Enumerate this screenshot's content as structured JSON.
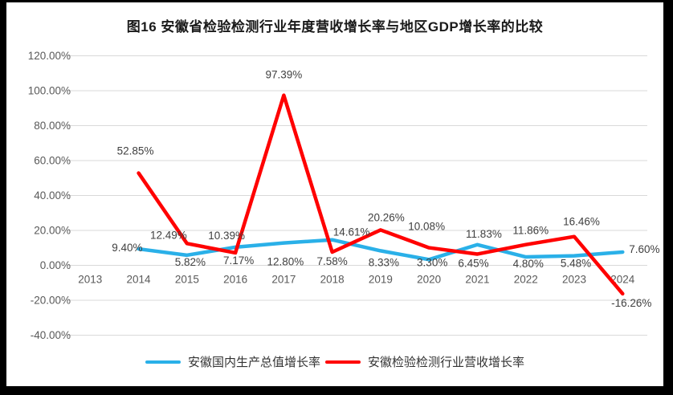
{
  "figure": {
    "frame_color": "#000000",
    "background": "#ffffff"
  },
  "chart_data": {
    "type": "line",
    "title": "图16 安徽省检验检测行业年度营收增长率与地区GDP增长率的比较",
    "categories": [
      "2013",
      "2014",
      "2015",
      "2016",
      "2017",
      "2018",
      "2019",
      "2020",
      "2021",
      "2022",
      "2023",
      "2024"
    ],
    "series": [
      {
        "name": "安徽国内生产总值增长率",
        "color": "#2ab0e8",
        "start_category_index": 1,
        "values": [
          9.4,
          5.82,
          10.39,
          12.8,
          14.61,
          8.33,
          3.3,
          11.83,
          4.8,
          5.48,
          7.6
        ],
        "labels": [
          "9.40%",
          "5.82%",
          "10.39%",
          "12.80%",
          "14.61%",
          "8.33%",
          "3.30%",
          "11.83%",
          "4.80%",
          "5.48%",
          "7.60%"
        ]
      },
      {
        "name": "安徽检验检测行业营收增长率",
        "color": "#ff0000",
        "start_category_index": 1,
        "values": [
          52.85,
          12.49,
          7.17,
          97.39,
          7.58,
          20.26,
          10.08,
          6.45,
          11.86,
          16.46,
          -16.26
        ],
        "labels": [
          "52.85%",
          "12.49%",
          "7.17%",
          "97.39%",
          "7.58%",
          "20.26%",
          "10.08%",
          "6.45%",
          "11.86%",
          "16.46%",
          "-16.26%"
        ]
      }
    ],
    "y_axis": {
      "min": -40,
      "max": 120,
      "step": 20,
      "tick_labels": [
        "120.00%",
        "100.00%",
        "80.00%",
        "60.00%",
        "40.00%",
        "20.00%",
        "0.00%",
        "-20.00%",
        "-40.00%"
      ]
    },
    "x_axis": {
      "label_color": "#595959"
    },
    "grid": true,
    "gridline_color": "#d9d9d9",
    "data_label_color": "#404040",
    "legend_position": "bottom"
  }
}
